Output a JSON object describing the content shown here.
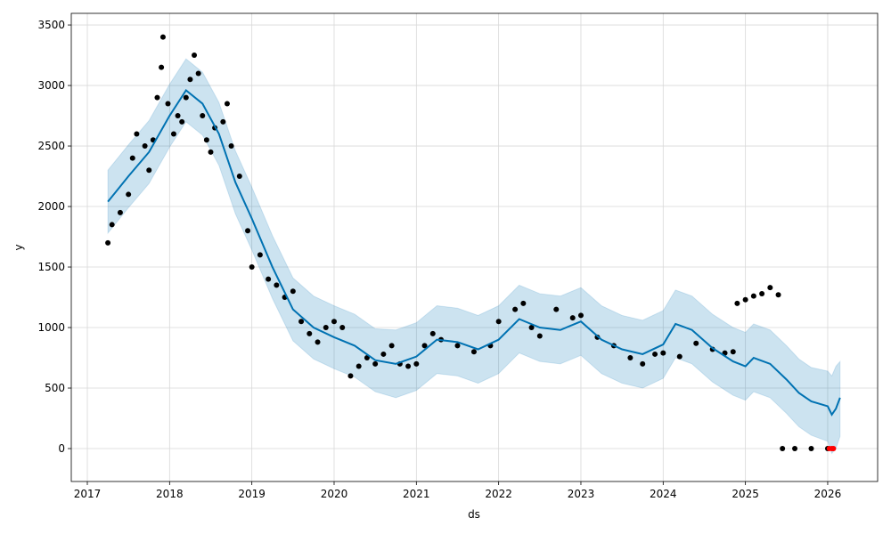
{
  "chart_data": {
    "type": "forecast",
    "xlabel": "ds",
    "ylabel": "y",
    "xlim": [
      2016.805,
      2026.607
    ],
    "ylim": [
      -272,
      3596
    ],
    "xticks": [
      2017,
      2018,
      2019,
      2020,
      2021,
      2022,
      2023,
      2024,
      2025,
      2026
    ],
    "yticks": [
      0,
      500,
      1000,
      1500,
      2000,
      2500,
      3000,
      3500
    ],
    "grid": true,
    "forecast": {
      "color": "#0072B2",
      "x": [
        2017.25,
        2017.5,
        2017.75,
        2018.0,
        2018.2,
        2018.4,
        2018.6,
        2018.8,
        2019.0,
        2019.25,
        2019.5,
        2019.75,
        2020.0,
        2020.25,
        2020.5,
        2020.75,
        2021.0,
        2021.25,
        2021.5,
        2021.75,
        2022.0,
        2022.25,
        2022.5,
        2022.75,
        2023.0,
        2023.25,
        2023.5,
        2023.75,
        2024.0,
        2024.15,
        2024.35,
        2024.6,
        2024.85,
        2025.0,
        2025.1,
        2025.3,
        2025.5,
        2025.65,
        2025.8,
        2026.0,
        2026.05,
        2026.1,
        2026.15
      ],
      "values": [
        2040,
        2250,
        2450,
        2750,
        2960,
        2850,
        2600,
        2200,
        1900,
        1500,
        1150,
        1000,
        920,
        850,
        730,
        700,
        760,
        900,
        880,
        820,
        900,
        1070,
        1000,
        980,
        1050,
        900,
        820,
        780,
        860,
        1030,
        980,
        830,
        720,
        680,
        750,
        700,
        570,
        460,
        390,
        350,
        280,
        330,
        420
      ],
      "lower": [
        1780,
        1990,
        2190,
        2490,
        2700,
        2590,
        2340,
        1940,
        1640,
        1240,
        890,
        740,
        660,
        590,
        470,
        420,
        480,
        620,
        600,
        540,
        620,
        790,
        720,
        700,
        770,
        620,
        540,
        500,
        580,
        750,
        700,
        550,
        440,
        400,
        470,
        420,
        290,
        180,
        110,
        60,
        -40,
        0,
        100
      ],
      "upper": [
        2300,
        2510,
        2710,
        3010,
        3220,
        3110,
        2860,
        2460,
        2160,
        1760,
        1410,
        1260,
        1180,
        1110,
        990,
        980,
        1040,
        1180,
        1160,
        1100,
        1180,
        1350,
        1280,
        1260,
        1330,
        1180,
        1100,
        1060,
        1140,
        1310,
        1260,
        1110,
        1000,
        960,
        1030,
        980,
        850,
        740,
        670,
        640,
        600,
        680,
        720
      ]
    },
    "observed": {
      "color": "#000000",
      "x": [
        2017.25,
        2017.3,
        2017.4,
        2017.5,
        2017.55,
        2017.6,
        2017.7,
        2017.75,
        2017.8,
        2017.85,
        2017.9,
        2017.92,
        2017.98,
        2018.05,
        2018.1,
        2018.15,
        2018.2,
        2018.25,
        2018.3,
        2018.35,
        2018.4,
        2018.45,
        2018.5,
        2018.55,
        2018.65,
        2018.7,
        2018.75,
        2018.85,
        2018.95,
        2019.0,
        2019.1,
        2019.2,
        2019.3,
        2019.4,
        2019.5,
        2019.6,
        2019.7,
        2019.8,
        2019.9,
        2020.0,
        2020.1,
        2020.2,
        2020.3,
        2020.4,
        2020.5,
        2020.6,
        2020.7,
        2020.8,
        2020.9,
        2021.0,
        2021.1,
        2021.2,
        2021.3,
        2021.5,
        2021.7,
        2021.9,
        2022.0,
        2022.2,
        2022.3,
        2022.4,
        2022.5,
        2022.7,
        2022.9,
        2023.0,
        2023.2,
        2023.4,
        2023.6,
        2023.75,
        2023.9,
        2024.0,
        2024.2,
        2024.4,
        2024.6,
        2024.75,
        2024.85,
        2024.9,
        2025.0,
        2025.1,
        2025.2,
        2025.3,
        2025.4,
        2025.45,
        2025.6,
        2025.8,
        2026.0
      ],
      "values": [
        1700,
        1850,
        1950,
        2100,
        2400,
        2600,
        2500,
        2300,
        2550,
        2900,
        3150,
        3400,
        2850,
        2600,
        2750,
        2700,
        2900,
        3050,
        3250,
        3100,
        2750,
        2550,
        2450,
        2650,
        2700,
        2850,
        2500,
        2250,
        1800,
        1500,
        1600,
        1400,
        1350,
        1250,
        1300,
        1050,
        950,
        880,
        1000,
        1050,
        1000,
        600,
        680,
        750,
        700,
        780,
        850,
        700,
        680,
        700,
        850,
        950,
        900,
        850,
        800,
        850,
        1050,
        1150,
        1200,
        1000,
        930,
        1150,
        1080,
        1100,
        920,
        850,
        750,
        700,
        780,
        790,
        760,
        870,
        820,
        790,
        800,
        1200,
        1230,
        1260,
        1280,
        1330,
        1270,
        0,
        0,
        0,
        0
      ]
    },
    "recent": {
      "color": "#ff0000",
      "x": [
        2026.02,
        2026.05,
        2026.07
      ],
      "values": [
        0,
        0,
        0
      ]
    }
  }
}
